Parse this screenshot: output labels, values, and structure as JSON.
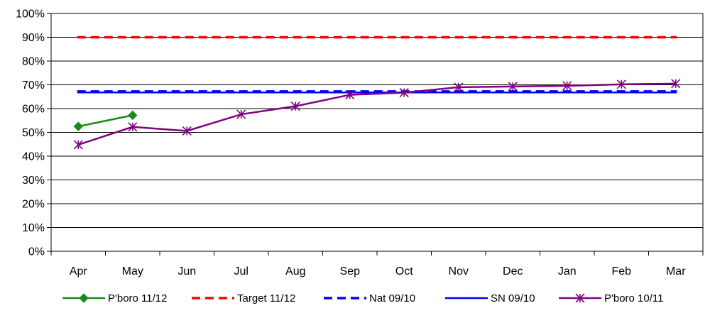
{
  "chart_data": {
    "type": "line",
    "categories": [
      "Apr",
      "May",
      "Jun",
      "Jul",
      "Aug",
      "Sep",
      "Oct",
      "Nov",
      "Dec",
      "Jan",
      "Feb",
      "Mar"
    ],
    "ylim": [
      0,
      100
    ],
    "yticks": [
      0,
      10,
      20,
      30,
      40,
      50,
      60,
      70,
      80,
      90,
      100
    ],
    "ytick_labels": [
      "0%",
      "10%",
      "20%",
      "30%",
      "40%",
      "50%",
      "60%",
      "70%",
      "80%",
      "90%",
      "100%"
    ],
    "grid": "horizontal",
    "legend_position": "bottom",
    "series": [
      {
        "name": "P'boro 11/12",
        "color": "#1a8a1a",
        "style": "solid",
        "marker": "diamond",
        "values": [
          52.5,
          57.2,
          null,
          null,
          null,
          null,
          null,
          null,
          null,
          null,
          null,
          null
        ]
      },
      {
        "name": "Target 11/12",
        "color": "#ff0000",
        "style": "dashed",
        "marker": "none",
        "values": [
          90,
          90,
          90,
          90,
          90,
          90,
          90,
          90,
          90,
          90,
          90,
          90
        ]
      },
      {
        "name": "Nat 09/10",
        "color": "#0000ff",
        "style": "dashed",
        "marker": "none",
        "values": [
          67.2,
          67.2,
          67.2,
          67.2,
          67.2,
          67.2,
          67.2,
          67.2,
          67.2,
          67.2,
          67.2,
          67.2
        ]
      },
      {
        "name": "SN 09/10",
        "color": "#0000ff",
        "style": "solid",
        "marker": "none",
        "values": [
          66.8,
          66.8,
          66.8,
          66.8,
          66.8,
          66.8,
          66.8,
          66.8,
          66.8,
          66.8,
          66.8,
          66.8
        ]
      },
      {
        "name": "P'boro 10/11",
        "color": "#800080",
        "style": "solid",
        "marker": "asterisk",
        "values": [
          44.8,
          52.3,
          50.6,
          57.6,
          61.0,
          65.8,
          66.7,
          69.0,
          69.3,
          69.6,
          70.2,
          70.5
        ]
      }
    ]
  }
}
